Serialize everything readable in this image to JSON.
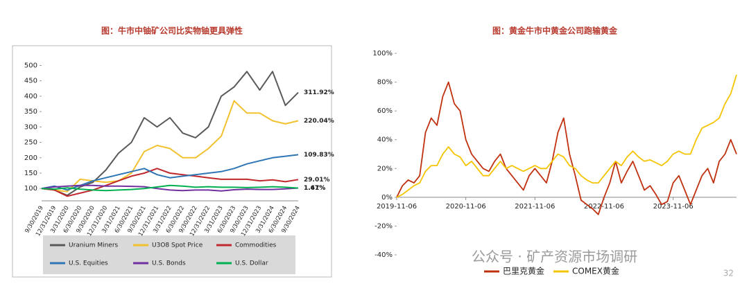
{
  "slide": {
    "watermark": "公众号 · 矿产资源市场调研",
    "page_number": "32"
  },
  "chart_data": [
    {
      "type": "line",
      "title": "图：牛市中铀矿公司比实物铀更具弹性",
      "categories": [
        "9/30/2019",
        "12/31/2019",
        "3/31/2020",
        "6/30/2020",
        "9/30/2020",
        "12/31/2020",
        "3/31/2021",
        "6/30/2021",
        "9/30/2021",
        "12/31/2021",
        "3/31/2022",
        "6/30/2022",
        "9/30/2022",
        "12/31/2022",
        "3/31/2023",
        "6/30/2023",
        "9/30/2023",
        "12/31/2023",
        "3/31/2024",
        "6/30/2024",
        "9/30/2024"
      ],
      "ylim": [
        60,
        510
      ],
      "yticks": [
        100,
        150,
        200,
        250,
        300,
        350,
        400,
        450,
        500
      ],
      "grid": false,
      "legend": "bottom",
      "series": [
        {
          "name": "Uranium Miners",
          "color": "#595959",
          "end_label": "311.92%",
          "values": [
            100,
            95,
            78,
            105,
            120,
            160,
            215,
            250,
            330,
            300,
            330,
            280,
            265,
            300,
            400,
            430,
            480,
            420,
            480,
            370,
            411.92
          ]
        },
        {
          "name": "U3O8 Spot Price",
          "color": "#f2c12e",
          "end_label": "220.04%",
          "values": [
            100,
            95,
            90,
            130,
            125,
            120,
            125,
            150,
            220,
            240,
            230,
            200,
            200,
            230,
            270,
            385,
            345,
            345,
            320,
            310,
            320.04
          ]
        },
        {
          "name": "Commodities",
          "color": "#c0282d",
          "end_label": "29.01%",
          "values": [
            100,
            95,
            75,
            85,
            95,
            110,
            125,
            140,
            150,
            165,
            150,
            145,
            140,
            135,
            130,
            130,
            130,
            125,
            128,
            122,
            129.01
          ]
        },
        {
          "name": "U.S. Equities",
          "color": "#2e75b6",
          "end_label": "109.83%",
          "values": [
            100,
            108,
            95,
            110,
            125,
            135,
            145,
            155,
            165,
            145,
            135,
            140,
            145,
            150,
            155,
            165,
            180,
            190,
            200,
            205,
            209.83
          ]
        },
        {
          "name": "U.S. Bonds",
          "color": "#7030a0",
          "end_label": "1.67%",
          "values": [
            100,
            105,
            108,
            110,
            110,
            108,
            108,
            107,
            106,
            100,
            95,
            93,
            95,
            95,
            92,
            96,
            98,
            97,
            97,
            99,
            101.67
          ]
        },
        {
          "name": "U.S. Dollar",
          "color": "#00b050",
          "end_label": "1.41%",
          "values": [
            100,
            98,
            102,
            98,
            95,
            93,
            95,
            97,
            100,
            105,
            110,
            108,
            104,
            106,
            104,
            104,
            103,
            104,
            106,
            104,
            101.41
          ]
        }
      ]
    },
    {
      "type": "line",
      "title": "图：黄金牛市中黄金公司跑输黄金",
      "x": [
        "2019-11-06",
        "2019-12-06",
        "2020-01-06",
        "2020-02-06",
        "2020-03-06",
        "2020-04-06",
        "2020-05-06",
        "2020-06-06",
        "2020-07-06",
        "2020-08-06",
        "2020-09-06",
        "2020-10-06",
        "2020-11-06",
        "2020-12-06",
        "2021-01-06",
        "2021-02-06",
        "2021-03-06",
        "2021-04-06",
        "2021-05-06",
        "2021-06-06",
        "2021-07-06",
        "2021-08-06",
        "2021-09-06",
        "2021-10-06",
        "2021-11-06",
        "2021-12-06",
        "2022-01-06",
        "2022-02-06",
        "2022-03-06",
        "2022-04-06",
        "2022-05-06",
        "2022-06-06",
        "2022-07-06",
        "2022-08-06",
        "2022-09-06",
        "2022-10-06",
        "2022-11-06",
        "2022-12-06",
        "2023-01-06",
        "2023-02-06",
        "2023-03-06",
        "2023-04-06",
        "2023-05-06",
        "2023-06-06",
        "2023-07-06",
        "2023-08-06",
        "2023-09-06",
        "2023-10-06",
        "2023-11-06",
        "2023-12-06",
        "2024-01-06",
        "2024-02-06",
        "2024-03-06",
        "2024-04-06",
        "2024-05-06",
        "2024-06-06",
        "2024-07-06",
        "2024-08-06",
        "2024-09-06",
        "2024-10-06"
      ],
      "xticks": [
        "2019-11-06",
        "2020-11-06",
        "2021-11-06",
        "2022-11-06",
        "2023-11-06"
      ],
      "ylim": [
        -40,
        100
      ],
      "yticks": [
        {
          "value": -40,
          "label": "-40%"
        },
        {
          "value": -20,
          "label": "-20%"
        },
        {
          "value": 0,
          "label": "0%"
        },
        {
          "value": 20,
          "label": "20%"
        },
        {
          "value": 40,
          "label": "40%"
        },
        {
          "value": 60,
          "label": "60%"
        },
        {
          "value": 80,
          "label": "80%"
        },
        {
          "value": 100,
          "label": "100%"
        }
      ],
      "grid": false,
      "legend": "bottom",
      "series": [
        {
          "name": "巴里克黄金",
          "color": "#c0300e",
          "values": [
            0,
            8,
            12,
            10,
            15,
            45,
            55,
            50,
            70,
            80,
            65,
            60,
            40,
            30,
            25,
            20,
            18,
            25,
            30,
            20,
            15,
            10,
            5,
            15,
            20,
            15,
            10,
            25,
            45,
            55,
            30,
            15,
            -2,
            -5,
            -8,
            -12,
            0,
            10,
            25,
            10,
            18,
            25,
            15,
            5,
            8,
            2,
            -5,
            -3,
            10,
            15,
            5,
            -5,
            5,
            15,
            20,
            10,
            25,
            30,
            40,
            30
          ]
        },
        {
          "name": "COMEX黄金",
          "color": "#f5c400",
          "values": [
            0,
            2,
            5,
            8,
            10,
            18,
            22,
            22,
            30,
            35,
            30,
            28,
            22,
            25,
            20,
            15,
            15,
            20,
            25,
            20,
            22,
            20,
            18,
            20,
            22,
            20,
            20,
            25,
            30,
            28,
            22,
            20,
            15,
            12,
            10,
            10,
            15,
            20,
            25,
            22,
            28,
            32,
            28,
            25,
            26,
            24,
            22,
            25,
            30,
            32,
            30,
            30,
            40,
            48,
            50,
            52,
            55,
            65,
            72,
            85
          ]
        }
      ]
    }
  ]
}
